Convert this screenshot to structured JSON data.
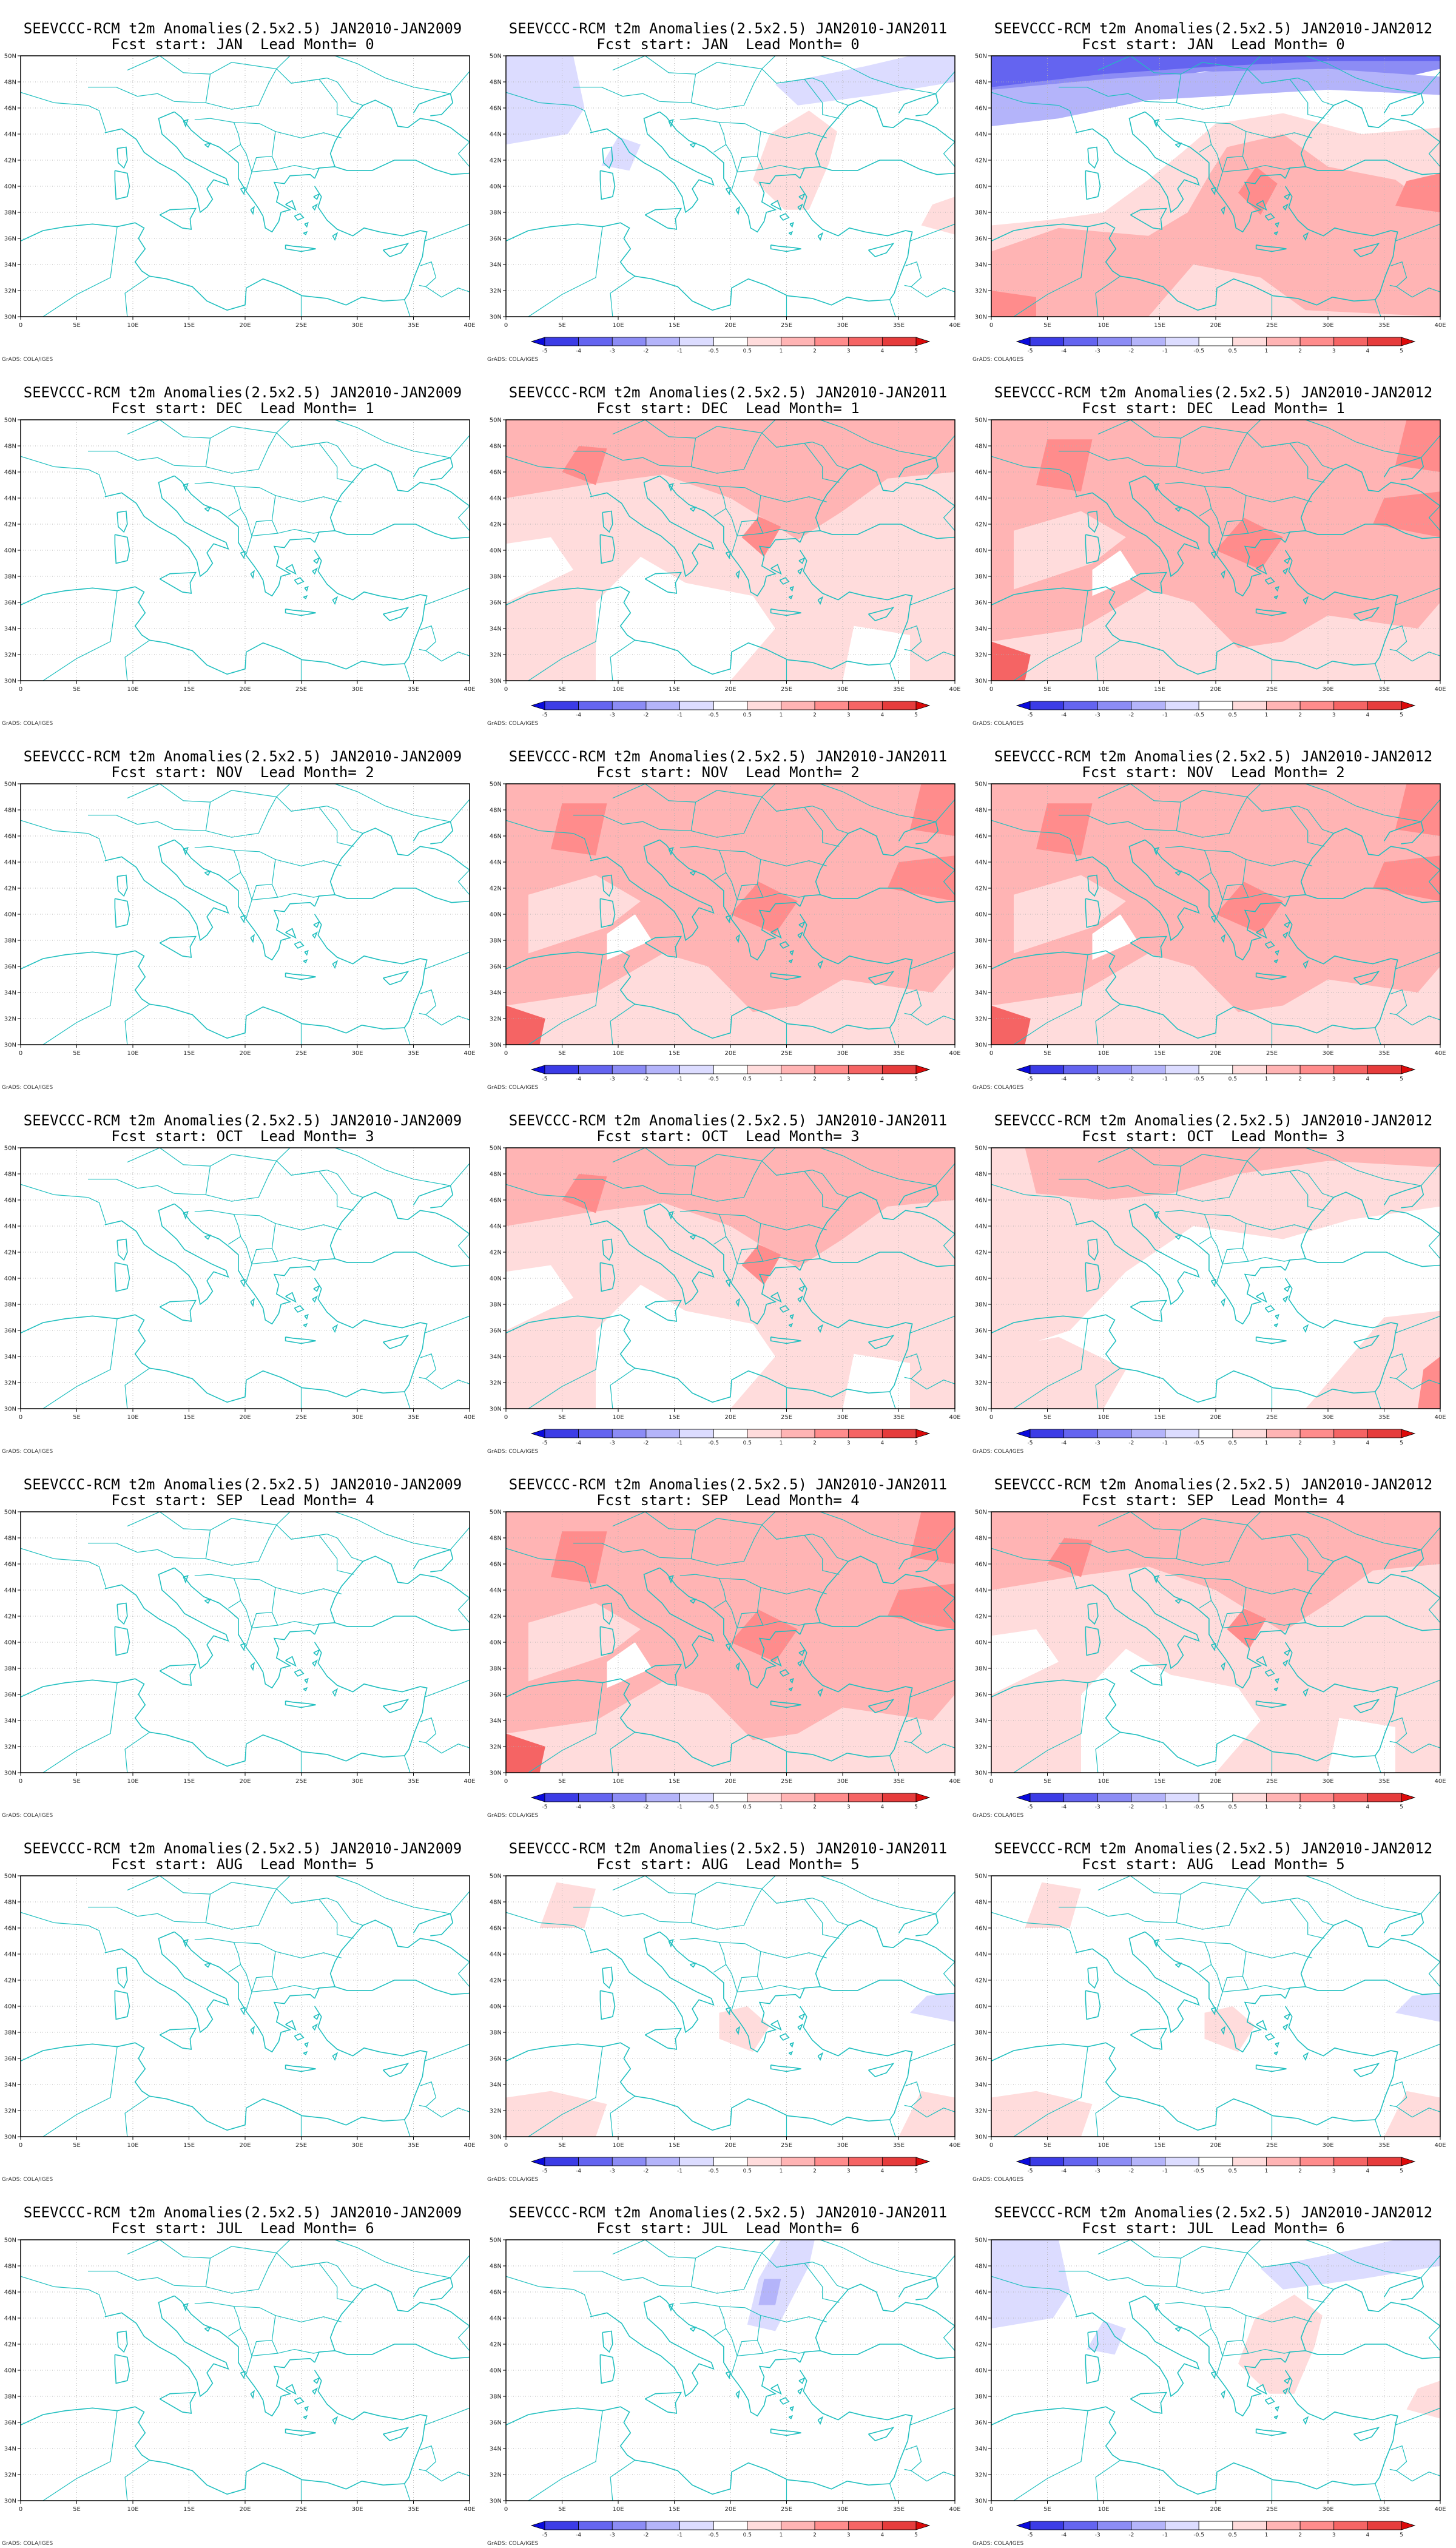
{
  "figure": {
    "credit_text": "GrADS: COLA/IGES",
    "colorbar": {
      "labels": [
        "-5",
        "-4",
        "-3",
        "-2",
        "-1",
        "-0.5",
        "0.5",
        "1",
        "2",
        "3",
        "4",
        "5"
      ],
      "colors": [
        "#0a0adc",
        "#3c3ce6",
        "#6464f0",
        "#8c8cf5",
        "#b4b4fa",
        "#dcdcff",
        "#ffffff",
        "#ffdcdc",
        "#ffb4b4",
        "#ff8c8c",
        "#f56464",
        "#e63c3c",
        "#dc0a0a"
      ]
    },
    "map_axes": {
      "lon_labels": [
        "0",
        "5E",
        "10E",
        "15E",
        "20E",
        "25E",
        "30E",
        "35E",
        "40E"
      ],
      "lat_labels": [
        "30N",
        "32N",
        "34N",
        "36N",
        "38N",
        "40N",
        "42N",
        "44N",
        "46N",
        "48N",
        "50N"
      ],
      "lon_range": [
        0,
        40
      ],
      "lat_range": [
        30,
        50
      ]
    },
    "coast_color": "#1fbfbf",
    "column_titles": [
      "SEEVCCC-RCM t2m Anomalies(2.5x2.5) JAN2010-JAN2009",
      "SEEVCCC-RCM t2m Anomalies(2.5x2.5) JAN2010-JAN2011",
      "SEEVCCC-RCM t2m Anomalies(2.5x2.5) JAN2010-JAN2012"
    ],
    "row_subtitles": [
      "Fcst start: JAN  Lead Month= 0",
      "Fcst start: DEC  Lead Month= 1",
      "Fcst start: NOV  Lead Month= 2",
      "Fcst start: OCT  Lead Month= 3",
      "Fcst start: SEP  Lead Month= 4",
      "Fcst start: AUG  Lead Month= 5",
      "Fcst start: JUL  Lead Month= 6"
    ],
    "anomaly_fields": [
      {
        "row": 0,
        "col": 0,
        "pattern": "none"
      },
      {
        "row": 0,
        "col": 1,
        "pattern": "weak-mixed"
      },
      {
        "row": 0,
        "col": 2,
        "pattern": "cold-north-warm-south"
      },
      {
        "row": 1,
        "col": 0,
        "pattern": "none"
      },
      {
        "row": 1,
        "col": 1,
        "pattern": "warm-north"
      },
      {
        "row": 1,
        "col": 2,
        "pattern": "warm-widespread"
      },
      {
        "row": 2,
        "col": 0,
        "pattern": "none"
      },
      {
        "row": 2,
        "col": 1,
        "pattern": "warm-widespread"
      },
      {
        "row": 2,
        "col": 2,
        "pattern": "warm-widespread"
      },
      {
        "row": 3,
        "col": 0,
        "pattern": "none"
      },
      {
        "row": 3,
        "col": 1,
        "pattern": "warm-north"
      },
      {
        "row": 3,
        "col": 2,
        "pattern": "warm-north-light"
      },
      {
        "row": 4,
        "col": 0,
        "pattern": "none"
      },
      {
        "row": 4,
        "col": 1,
        "pattern": "warm-widespread"
      },
      {
        "row": 4,
        "col": 2,
        "pattern": "warm-north"
      },
      {
        "row": 5,
        "col": 0,
        "pattern": "none"
      },
      {
        "row": 5,
        "col": 1,
        "pattern": "weak-warm"
      },
      {
        "row": 5,
        "col": 2,
        "pattern": "weak-warm"
      },
      {
        "row": 6,
        "col": 0,
        "pattern": "none"
      },
      {
        "row": 6,
        "col": 1,
        "pattern": "weak-cold-central"
      },
      {
        "row": 6,
        "col": 2,
        "pattern": "weak-mixed"
      }
    ]
  }
}
